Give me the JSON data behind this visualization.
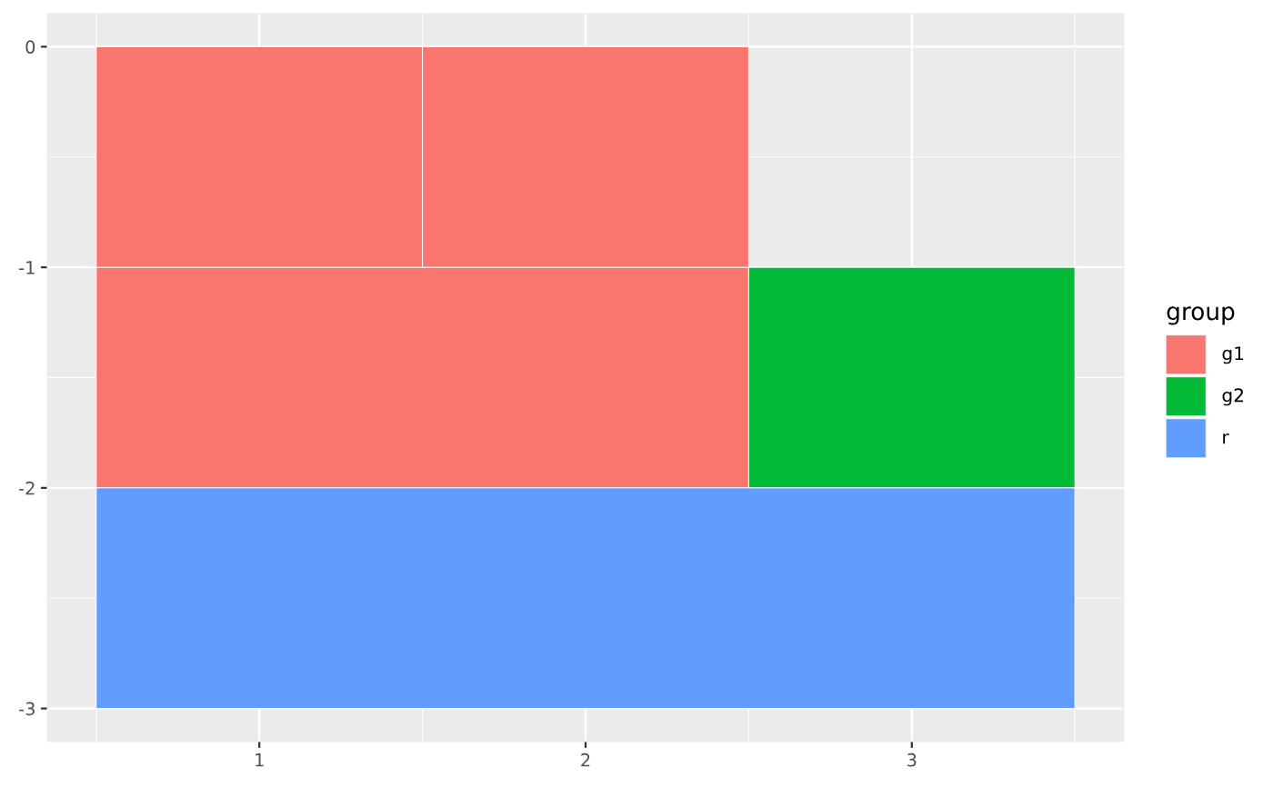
{
  "chart_data": {
    "type": "bar",
    "orientation": "horizontal",
    "legend_title": "group",
    "legend": "right",
    "grid": true,
    "xlim": [
      0.35,
      3.65
    ],
    "xticks": [
      1,
      2,
      3
    ],
    "ylim": [
      -3.15,
      0.15
    ],
    "yticks": [
      -3,
      -2,
      -1,
      0
    ],
    "series": [
      {
        "name": "g1",
        "color": "#f8766d",
        "x": [
          -1.5,
          -0.5
        ],
        "base": [
          0.5,
          0.5
        ],
        "values": [
          2,
          1
        ]
      },
      {
        "color": "#f8766d",
        "x": [
          -0.5
        ],
        "base": [
          1.5
        ],
        "values": [
          1
        ]
      },
      {
        "name": "g2",
        "color": "#00ba38",
        "x": [
          -1.5
        ],
        "base": [
          2.5
        ],
        "values": [
          1
        ]
      },
      {
        "name": "r",
        "color": "#619cff",
        "x": [
          -2.5
        ],
        "base": [
          0.5
        ],
        "values": [
          3
        ]
      }
    ]
  }
}
